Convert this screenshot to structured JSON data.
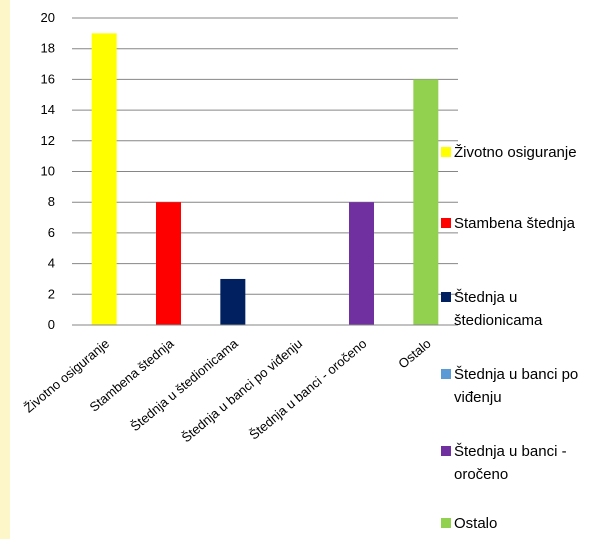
{
  "chart_data": {
    "type": "bar",
    "categories": [
      "Životno osiguranje",
      "Stambena štednja",
      "Štednja u štedionicama",
      "Štednja u banci po viđenju",
      "Štednja u banci - oročeno",
      "Ostalo"
    ],
    "values": [
      19,
      8,
      3,
      0,
      8,
      16
    ],
    "colors": [
      "#ffff00",
      "#ff0000",
      "#002060",
      "#5b9bd5",
      "#7030a0",
      "#92d050"
    ],
    "ylim": [
      0,
      20
    ],
    "yticks": [
      0,
      2,
      4,
      6,
      8,
      10,
      12,
      14,
      16,
      18,
      20
    ],
    "grid": true,
    "legend_position": "right",
    "legend": [
      [
        "Životno osiguranje"
      ],
      [
        "Stambena štednja"
      ],
      [
        "Štednja u",
        "štedionicama"
      ],
      [
        "Štednja u banci po",
        "viđenju"
      ],
      [
        "Štednja u banci -",
        "oročeno"
      ],
      [
        "Ostalo"
      ]
    ]
  }
}
